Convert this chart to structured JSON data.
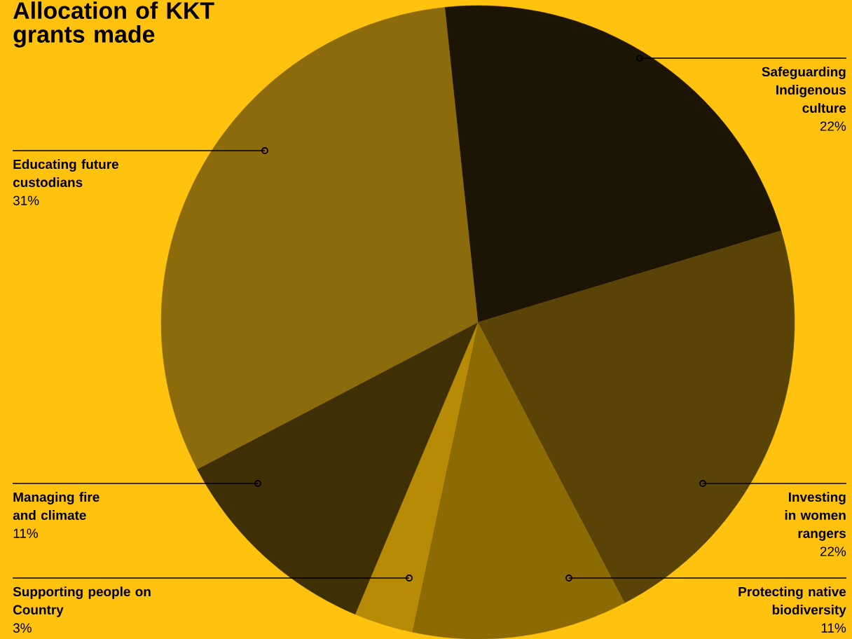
{
  "chart_data": {
    "type": "pie",
    "title": "Allocation of KKT grants made",
    "categories": [
      "Safeguarding Indigenous culture",
      "Investing in women rangers",
      "Protecting native biodiversity",
      "Supporting people on Country",
      "Managing fire and climate",
      "Educating future custodians"
    ],
    "values": [
      22,
      22,
      11,
      3,
      11,
      31
    ],
    "value_labels": [
      "22%",
      "22%",
      "11%",
      "3%",
      "11%",
      "31%"
    ],
    "colors": [
      "#1c1505",
      "#5a4306",
      "#8c6a04",
      "#b88b06",
      "#3f2f05",
      "#8b6b0b"
    ]
  }
}
